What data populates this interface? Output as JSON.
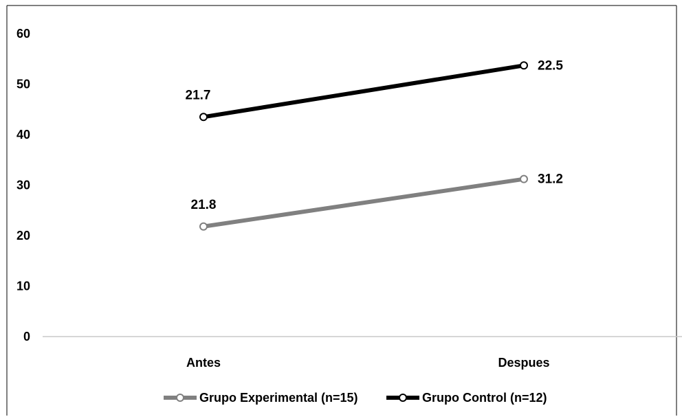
{
  "chart_data": {
    "type": "line",
    "title": "",
    "xlabel": "",
    "ylabel": "",
    "categories": [
      "Antes",
      "Despues"
    ],
    "ylim": [
      0,
      60
    ],
    "yticks": [
      "0",
      "10",
      "20",
      "30",
      "40",
      "50",
      "60"
    ],
    "grid": false,
    "legend_position": "bottom",
    "series": [
      {
        "name": "Grupo Experimental (n=15)",
        "values": [
          21.8,
          31.2
        ],
        "labels": [
          "21.8",
          "31.2"
        ],
        "color": "#808080"
      },
      {
        "name": "Grupo Control (n=12)",
        "values": [
          43.5,
          53.7
        ],
        "labels": [
          "21.7",
          "22.5"
        ],
        "color": "#000000"
      }
    ]
  }
}
